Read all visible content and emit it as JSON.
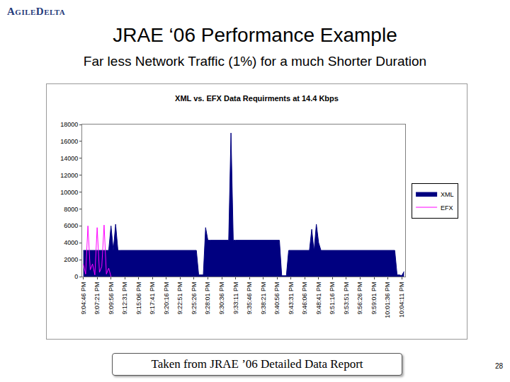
{
  "slide": {
    "logo": "AgileDelta",
    "title": "JRAE ‘06 Performance Example",
    "subtitle": "Far less Network Traffic (1%) for a much Shorter Duration",
    "caption": "Taken from JRAE ’06 Detailed Data Report",
    "page_number": "28"
  },
  "chart_data": {
    "type": "line",
    "title": "XML vs. EFX Data Requirments at 14.4 Kbps",
    "categories": [
      "9:04:46 PM",
      null,
      null,
      null,
      null,
      null,
      "9:07:21 PM",
      null,
      null,
      null,
      null,
      null,
      "9:09:56 PM",
      null,
      null,
      null,
      null,
      null,
      "9:12:31 PM",
      null,
      null,
      null,
      null,
      null,
      "9:15:06 PM",
      null,
      null,
      null,
      null,
      null,
      "9:17:41 PM",
      null,
      null,
      null,
      null,
      null,
      "9:20:16 PM",
      null,
      null,
      null,
      null,
      null,
      "9:22:51 PM",
      null,
      null,
      null,
      null,
      null,
      "9:25:26 PM",
      null,
      null,
      null,
      null,
      null,
      "9:28:01 PM",
      null,
      null,
      null,
      null,
      null,
      "9:30:36 PM",
      null,
      null,
      null,
      null,
      null,
      "9:33:11 PM",
      null,
      null,
      null,
      null,
      null,
      "9:35:46 PM",
      null,
      null,
      null,
      null,
      null,
      "9:38:21 PM",
      null,
      null,
      null,
      null,
      null,
      "9:40:56 PM",
      null,
      null,
      null,
      null,
      null,
      "9:43:31 PM",
      null,
      null,
      null,
      null,
      null,
      "9:46:06 PM",
      null,
      null,
      null,
      null,
      null,
      "9:48:41 PM",
      null,
      null,
      null,
      null,
      null,
      "9:51:16 PM",
      null,
      null,
      null,
      null,
      null,
      "9:53:51 PM",
      null,
      null,
      null,
      null,
      null,
      "9:56:26 PM",
      null,
      null,
      null,
      null,
      null,
      "9:59:01 PM",
      null,
      null,
      null,
      null,
      null,
      "10:01:36 PM",
      null,
      null,
      null,
      null,
      null,
      "10:04:11 PM",
      null
    ],
    "series": [
      {
        "name": "XML",
        "color": "#000080",
        "type": "area",
        "values": [
          3100,
          3100,
          3100,
          3100,
          3100,
          3100,
          3100,
          3100,
          3100,
          3100,
          3100,
          3100,
          6000,
          3100,
          6200,
          3100,
          3100,
          3100,
          3100,
          3100,
          3100,
          3100,
          3100,
          3100,
          3100,
          3100,
          3100,
          3100,
          3100,
          3100,
          3100,
          3100,
          3100,
          3100,
          3100,
          3100,
          3100,
          3100,
          3100,
          3100,
          3100,
          3100,
          3100,
          3100,
          3100,
          3100,
          3100,
          3100,
          3100,
          3100,
          200,
          200,
          200,
          5800,
          4300,
          4300,
          4300,
          4300,
          4300,
          4300,
          4300,
          4300,
          4300,
          4300,
          17000,
          4300,
          4300,
          4300,
          4300,
          4300,
          4300,
          4300,
          4300,
          4300,
          4300,
          4300,
          4300,
          4300,
          4300,
          4300,
          4300,
          4300,
          4300,
          4300,
          4300,
          4300,
          100,
          100,
          100,
          3100,
          3100,
          3100,
          3100,
          3100,
          3100,
          3100,
          3100,
          3100,
          3100,
          5600,
          3000,
          6200,
          4000,
          3100,
          3100,
          3100,
          3100,
          3100,
          3100,
          3100,
          3100,
          3100,
          3100,
          3100,
          3100,
          3100,
          3100,
          3100,
          3100,
          3100,
          3100,
          3100,
          3100,
          3100,
          3100,
          3100,
          3100,
          3100,
          3100,
          3100,
          3100,
          3100,
          3100,
          3100,
          3100,
          3100,
          200,
          200,
          100,
          600
        ]
      },
      {
        "name": "EFX",
        "color": "#ff00ff",
        "type": "line",
        "values": [
          1500,
          300,
          6000,
          800,
          1500,
          200,
          5800,
          500,
          1200,
          6100,
          300,
          1000,
          0,
          null,
          null,
          null,
          null,
          null,
          null,
          null,
          null,
          null,
          null,
          null,
          null,
          null,
          null,
          null,
          null,
          null,
          null,
          null,
          null,
          null,
          null,
          null,
          null,
          null,
          null,
          null,
          null,
          null,
          null,
          null,
          null,
          null,
          null,
          null,
          null,
          null,
          null,
          null,
          null,
          null,
          null,
          null,
          null,
          null,
          null,
          null,
          null,
          null,
          null,
          null,
          null,
          null,
          null,
          null,
          null,
          null,
          null,
          null,
          null,
          null,
          null,
          null,
          null,
          null,
          null,
          null,
          null,
          null,
          null,
          null,
          null,
          null,
          null,
          null,
          null,
          null,
          null,
          null,
          null,
          null,
          null,
          null,
          null,
          null,
          null,
          null,
          null,
          null,
          null,
          null,
          null,
          null,
          null,
          null,
          null,
          null,
          null,
          null,
          null,
          null,
          null,
          null,
          null,
          null,
          null,
          null,
          null,
          null,
          null,
          null,
          null,
          null,
          null,
          null,
          null,
          null,
          null,
          null,
          null,
          null,
          null,
          null,
          null,
          null,
          null,
          null
        ]
      }
    ],
    "ylim": [
      0,
      18000
    ],
    "yticks": [
      0,
      2000,
      4000,
      6000,
      8000,
      10000,
      12000,
      14000,
      16000,
      18000
    ],
    "grid": false,
    "legend": "right"
  }
}
